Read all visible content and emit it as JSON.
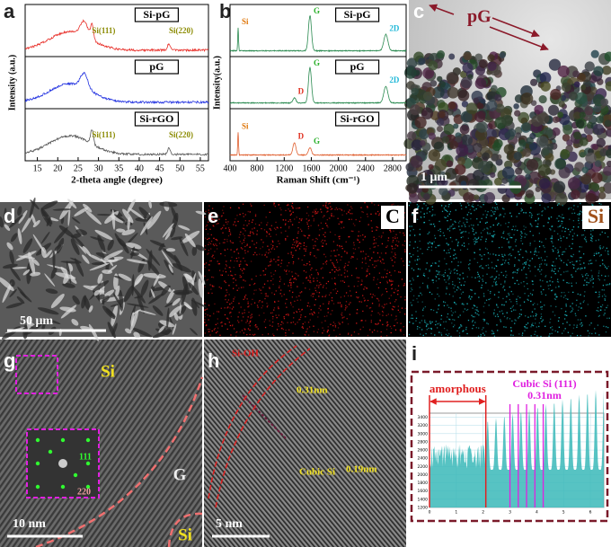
{
  "panel_labels": [
    "a",
    "b",
    "c",
    "d",
    "e",
    "f",
    "g",
    "h",
    "i"
  ],
  "xrd": {
    "xlabel": "2-theta angle (degree)",
    "ylabel": "Intensity (a.u.)",
    "xlim": [
      12,
      57
    ],
    "xticks": [
      15,
      20,
      25,
      30,
      35,
      40,
      45,
      50,
      55
    ],
    "traces": [
      {
        "name": "Si-pG",
        "color": "#e8302a",
        "annotations": [
          {
            "text": "Si(111)",
            "x": 28.4
          },
          {
            "text": "Si(220)",
            "x": 47.3
          }
        ]
      },
      {
        "name": "pG",
        "color": "#1f2fe0",
        "annotations": []
      },
      {
        "name": "Si-rGO",
        "color": "#555555",
        "annotations": [
          {
            "text": "Si(111)",
            "x": 28.4
          },
          {
            "text": "Si(220)",
            "x": 47.3
          }
        ]
      }
    ]
  },
  "raman": {
    "xlabel": "Raman Shift (cm⁻¹)",
    "ylabel": "Intensity(a.u.)",
    "xlim": [
      400,
      3000
    ],
    "xticks": [
      400,
      800,
      1200,
      1600,
      2000,
      2400,
      2800
    ],
    "traces": [
      {
        "name": "Si-pG",
        "color": "#2a8a50",
        "peaks": [
          {
            "text": "Si",
            "x": 520,
            "color": "#e07a10"
          },
          {
            "text": "G",
            "x": 1580,
            "color": "#2ab02a"
          },
          {
            "text": "2D",
            "x": 2700,
            "color": "#20b8d8"
          }
        ]
      },
      {
        "name": "pG",
        "color": "#2a8a50",
        "peaks": [
          {
            "text": "D",
            "x": 1350,
            "color": "#e03020"
          },
          {
            "text": "G",
            "x": 1580,
            "color": "#2ab02a"
          },
          {
            "text": "2D",
            "x": 2700,
            "color": "#20b8d8"
          }
        ]
      },
      {
        "name": "Si-rGO",
        "color": "#e06030",
        "peaks": [
          {
            "text": "Si",
            "x": 520,
            "color": "#e07a10"
          },
          {
            "text": "D",
            "x": 1350,
            "color": "#e03020"
          },
          {
            "text": "G",
            "x": 1580,
            "color": "#2ab02a"
          }
        ]
      }
    ]
  },
  "c": {
    "label": "pG",
    "scale": "1 μm"
  },
  "d": {
    "scale": "50 μm"
  },
  "e": {
    "element": "C"
  },
  "f": {
    "element": "Si"
  },
  "g": {
    "regions": [
      "Si",
      "G",
      "Si"
    ],
    "fft": [
      "111",
      "220"
    ],
    "scale": "10 nm"
  },
  "h": {
    "layer": "Si-OH",
    "d1": "0.31nm",
    "phase": "Cubic Si",
    "d2": "0.19nm",
    "scale": "5 nm"
  },
  "i": {
    "region": "amorphous",
    "phase": "Cubic Si (111)",
    "d": "0.31nm",
    "xlim": [
      0,
      6.5
    ],
    "xticks": [
      0,
      1,
      2,
      3,
      4,
      5,
      6
    ],
    "ylim": [
      1200,
      3500
    ],
    "yticks": [
      1200,
      1400,
      1600,
      1800,
      2000,
      2200,
      2400,
      2600,
      2800,
      3000,
      3200,
      3400
    ]
  }
}
